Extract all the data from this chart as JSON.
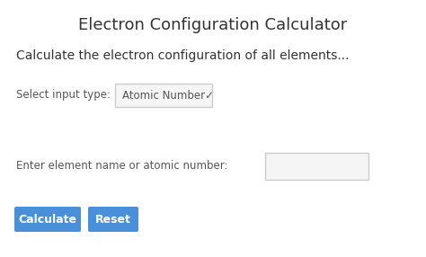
{
  "title": "Electron Configuration Calculator",
  "subtitle": "Calculate the electron configuration of all elements...",
  "label_select": "Select input type:",
  "dropdown_text": "Atomic Number✓",
  "label_input": "Enter element name or atomic number:",
  "btn1_text": "Calculate",
  "btn2_text": "Reset",
  "bg_color": "#ffffff",
  "title_color": "#333333",
  "subtitle_color": "#333333",
  "label_color": "#555555",
  "btn_color": "#4a90d9",
  "btn_text_color": "#ffffff",
  "border_color": "#cccccc",
  "dropdown_bg": "#f5f5f5",
  "input_bg": "#f5f5f5",
  "title_fontsize": 13,
  "subtitle_fontsize": 10,
  "label_fontsize": 8.5,
  "dropdown_fontsize": 8.5,
  "btn_fontsize": 9,
  "fig_w": 4.74,
  "fig_h": 2.86,
  "dpi": 100
}
